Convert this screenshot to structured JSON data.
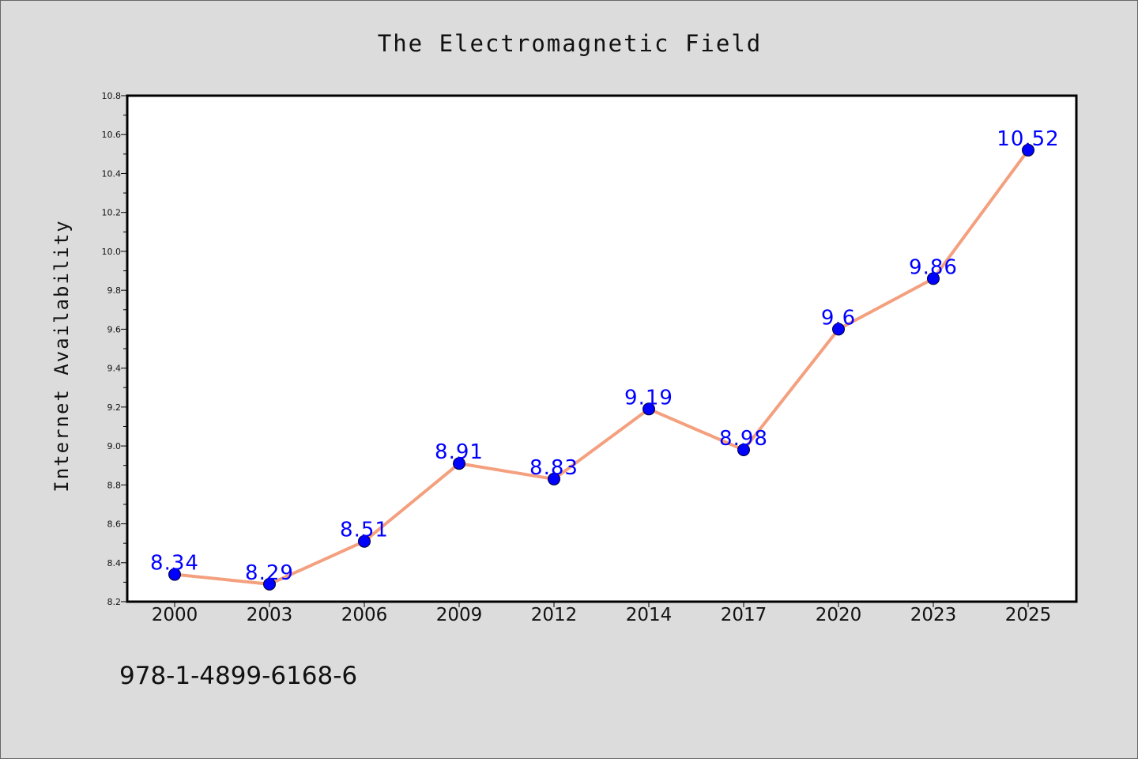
{
  "chart_data": {
    "type": "line",
    "title": "The Electromagnetic Field",
    "xlabel": "",
    "ylabel": "Internet Availability",
    "categories": [
      "2000",
      "2003",
      "2006",
      "2009",
      "2012",
      "2014",
      "2017",
      "2020",
      "2023",
      "2025"
    ],
    "series": [
      {
        "values": [
          8.34,
          8.29,
          8.51,
          8.91,
          8.83,
          9.19,
          8.98,
          9.6,
          9.86,
          10.52
        ],
        "data_labels": [
          "8.34",
          "8.29",
          "8.51",
          "8.91",
          "8.83",
          "9.19",
          "8.98",
          "9.6",
          "9.86",
          "10.52"
        ],
        "line_color": "#f4a07e",
        "marker_color": "#0000ff"
      }
    ],
    "ylim": [
      8.2,
      10.8
    ],
    "yticks": [
      "8.2",
      "8.4",
      "8.6",
      "8.8",
      "9.0",
      "9.2",
      "9.4",
      "9.6",
      "9.8",
      "10.0",
      "10.2",
      "10.4",
      "10.6",
      "10.8"
    ],
    "grid": false,
    "legend": "none"
  },
  "footer": {
    "isbn": "978-1-4899-6168-6"
  },
  "colors": {
    "background": "#dcdcdc",
    "plot_background": "#ffffff",
    "label_color": "#0000ff"
  }
}
